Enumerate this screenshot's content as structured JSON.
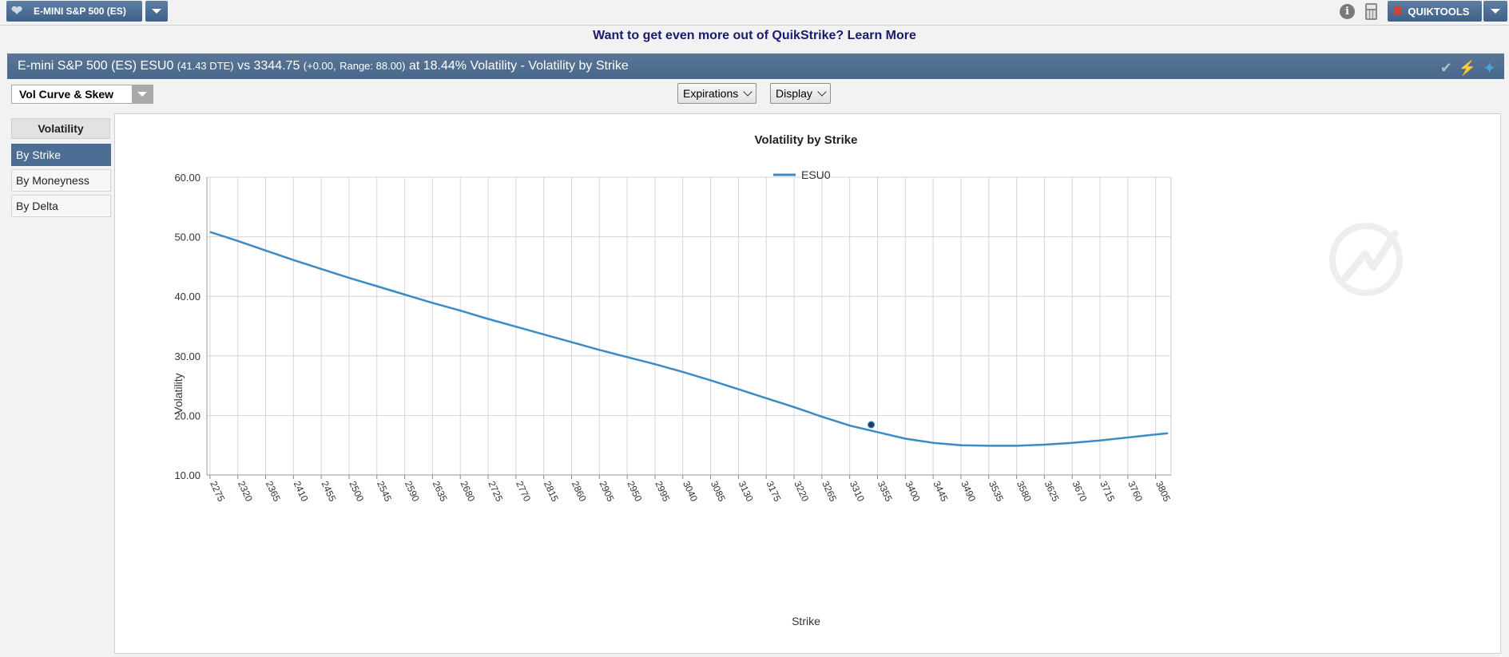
{
  "topbar": {
    "product_label": "E-MINI S&P 500 (ES)",
    "favorite_icon": "heart-icon",
    "info_icon": "info-icon",
    "calculator_icon": "calculator-icon",
    "quiktools_label": "QUIKTOOLS",
    "quiktools_icon": "tools-icon"
  },
  "promo": {
    "text": "Want to get even more out of QuikStrike?",
    "link": "Learn More"
  },
  "titlebar": {
    "prefix": "E-mini S&P 500 (ES) ESU0",
    "dte": "(41.43 DTE)",
    "vs": "vs 3344.75",
    "change": "(+0.00,",
    "range": "Range: 88.00)",
    "suffix": "at 18.44% Volatility - Volatility by Strike",
    "icons": [
      "check-icon",
      "lightning-icon",
      "twitter-icon"
    ]
  },
  "controls": {
    "view_select": "Vol Curve & Skew",
    "expirations": "Expirations",
    "display": "Display"
  },
  "sidebar": {
    "header": "Volatility",
    "items": [
      {
        "label": "By Strike",
        "active": true
      },
      {
        "label": "By Moneyness",
        "active": false
      },
      {
        "label": "By Delta",
        "active": false
      }
    ]
  },
  "colors": {
    "accent": "#4c6d94",
    "series": "#3a8cc4",
    "point": "#1f3f66"
  },
  "chart_data": {
    "type": "line",
    "title": "Volatility by Strike",
    "xlabel": "Strike",
    "ylabel": "Volatility",
    "ylim": [
      10,
      60
    ],
    "xlim": [
      2270,
      3830
    ],
    "yticks": [
      "10.00",
      "20.00",
      "30.00",
      "40.00",
      "50.00",
      "60.00"
    ],
    "xticks": [
      2275,
      2320,
      2365,
      2410,
      2455,
      2500,
      2545,
      2590,
      2635,
      2680,
      2725,
      2770,
      2815,
      2860,
      2905,
      2950,
      2995,
      3040,
      3085,
      3130,
      3175,
      3220,
      3265,
      3310,
      3355,
      3400,
      3445,
      3490,
      3535,
      3580,
      3625,
      3670,
      3715,
      3760,
      3805
    ],
    "grid": true,
    "legend": "top-center",
    "series": [
      {
        "name": "ESU0",
        "x": [
          2275,
          2320,
          2365,
          2410,
          2455,
          2500,
          2545,
          2590,
          2635,
          2680,
          2725,
          2770,
          2815,
          2860,
          2905,
          2950,
          2995,
          3040,
          3085,
          3130,
          3175,
          3220,
          3265,
          3310,
          3355,
          3400,
          3445,
          3490,
          3535,
          3580,
          3625,
          3670,
          3715,
          3760,
          3805,
          3825
        ],
        "y": [
          50.8,
          49.3,
          47.7,
          46.1,
          44.6,
          43.1,
          41.7,
          40.3,
          38.9,
          37.6,
          36.2,
          34.9,
          33.6,
          32.3,
          31.0,
          29.8,
          28.6,
          27.3,
          25.9,
          24.4,
          22.9,
          21.4,
          19.8,
          18.3,
          17.2,
          16.1,
          15.4,
          15.0,
          14.9,
          14.9,
          15.1,
          15.4,
          15.8,
          16.3,
          16.8,
          17.0
        ]
      }
    ],
    "marker": {
      "x": 3344.75,
      "y": 18.44
    }
  }
}
